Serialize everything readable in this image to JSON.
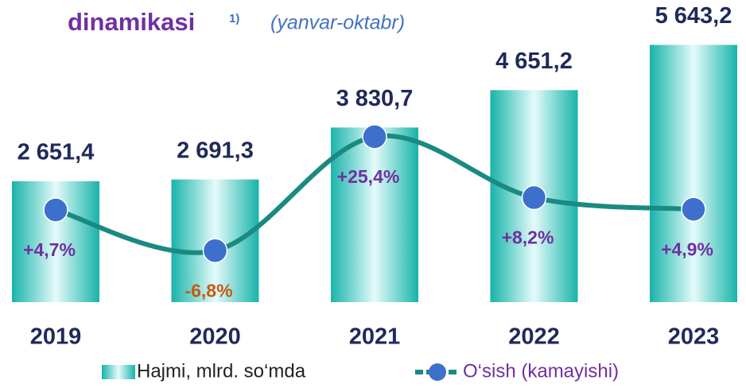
{
  "chart_data": {
    "type": "bar",
    "title": "dinamikasi",
    "title_note": "1)",
    "subtitle": "(yanvar-oktabr)",
    "categories": [
      "2019",
      "2020",
      "2021",
      "2022",
      "2023"
    ],
    "series": [
      {
        "name": "Hajmi, mlrd. so‘mda",
        "type": "bar",
        "color": "#20b8b0",
        "values": [
          2651.4,
          2691.3,
          3830.7,
          4651.2,
          5643.2
        ],
        "value_labels": [
          "2 651,4",
          "2 691,3",
          "3 830,7",
          "4 651,2",
          "5 643,2"
        ]
      },
      {
        "name": "O‘sish (kamayishi)",
        "type": "line",
        "axis": "y2",
        "color": "#1a8a80",
        "marker_color": "#3d6fcc",
        "values": [
          4.7,
          -6.8,
          25.4,
          8.2,
          4.9
        ],
        "value_labels": [
          "+4,7%",
          "-6,8%",
          "+25,4%",
          "+8,2%",
          "+4,9%"
        ],
        "label_colors": [
          "#7030a0",
          "#c55a11",
          "#7030a0",
          "#7030a0",
          "#7030a0"
        ]
      }
    ],
    "ylim": [
      0,
      6000
    ],
    "y2lim": [
      -20,
      40
    ],
    "legend": "bottom"
  }
}
